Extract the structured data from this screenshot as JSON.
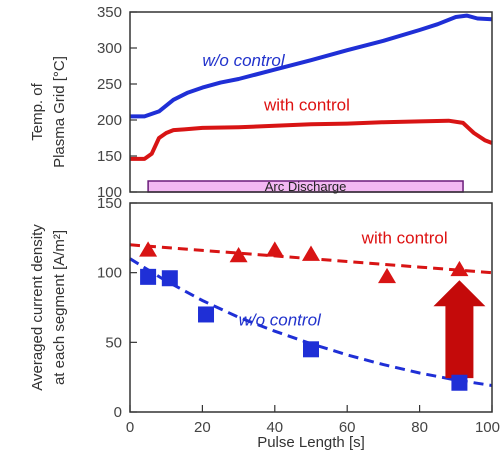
{
  "chart_data": [
    {
      "type": "line",
      "xlim": [
        0,
        100
      ],
      "ylim": [
        100,
        350
      ],
      "yticks": [
        "100",
        "150",
        "200",
        "250",
        "300",
        "350"
      ],
      "ylabel_lines": [
        "Temp. of",
        "Plasma Grid [°C]"
      ],
      "series": [
        {
          "name": "w/o control",
          "color": "#1f2fd6",
          "x": [
            0,
            4,
            8,
            12,
            16,
            20,
            25,
            30,
            40,
            50,
            60,
            70,
            80,
            85,
            90,
            93,
            96,
            100
          ],
          "y": [
            205,
            205,
            212,
            228,
            238,
            245,
            252,
            257,
            270,
            283,
            297,
            310,
            325,
            333,
            343,
            345,
            341,
            340
          ]
        },
        {
          "name": "with control",
          "color": "#d81414",
          "x": [
            0,
            4,
            6,
            8,
            10,
            12,
            15,
            20,
            30,
            40,
            50,
            60,
            70,
            80,
            88,
            92,
            95,
            98,
            100
          ],
          "y": [
            146,
            146,
            153,
            175,
            182,
            186,
            187,
            189,
            190,
            192,
            194,
            195,
            197,
            198,
            199,
            196,
            182,
            172,
            168
          ]
        }
      ],
      "annotations": [
        {
          "text": "w/o control",
          "x": 20,
          "y": 275
        },
        {
          "text": "with control",
          "x": 37,
          "y": 213
        }
      ],
      "span": {
        "label": "Arc Discharge",
        "x_start": 5,
        "x_end": 92,
        "color": "#f2b8f2"
      }
    },
    {
      "type": "scatter",
      "xlim": [
        0,
        100
      ],
      "ylim": [
        0,
        150
      ],
      "xticks": [
        "0",
        "20",
        "40",
        "60",
        "80",
        "100"
      ],
      "yticks": [
        "0",
        "50",
        "100",
        "150"
      ],
      "xlabel": "Pulse Length [s]",
      "ylabel_lines": [
        "Averaged current density",
        "at each segment [A/m²]"
      ],
      "series": [
        {
          "name": "with control",
          "marker": "triangle",
          "color": "#d81414",
          "x": [
            5,
            30,
            40,
            50,
            71,
            91
          ],
          "y": [
            116,
            112,
            116,
            113,
            97,
            102
          ],
          "fit": {
            "x": [
              0,
              20,
              40,
              60,
              80,
              100
            ],
            "y": [
              120,
              116,
              112,
              108,
              104,
              100
            ]
          }
        },
        {
          "name": "w/o control",
          "marker": "square",
          "color": "#1f2fd6",
          "x": [
            5,
            11,
            21,
            50,
            91
          ],
          "y": [
            97,
            96,
            70,
            45,
            21
          ],
          "fit": {
            "x": [
              0,
              10,
              20,
              30,
              40,
              50,
              60,
              70,
              80,
              90,
              100
            ],
            "y": [
              110,
              94,
              80,
              68,
              58,
              49,
              41,
              34,
              28,
              23,
              19
            ]
          }
        }
      ],
      "annotations": [
        {
          "text": "with control",
          "x": 64,
          "y": 121
        },
        {
          "text": "w/o control",
          "x": 30,
          "y": 62
        }
      ],
      "arrow": {
        "x": 91,
        "y_from": 20,
        "y_to": 96,
        "color": "#c40a0a"
      }
    }
  ]
}
